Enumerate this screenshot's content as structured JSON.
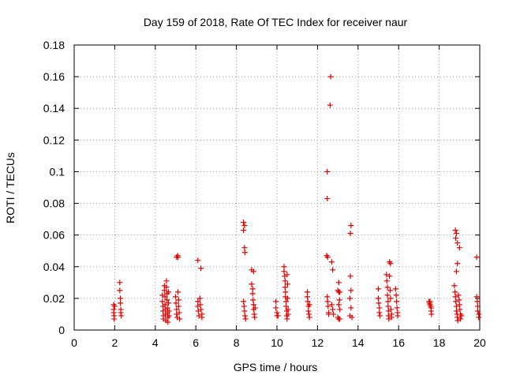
{
  "chart_data": {
    "type": "scatter",
    "title": "Day 159 of 2018, Rate Of TEC Index for receiver naur",
    "xlabel": "GPS time / hours",
    "ylabel": "ROTI / TECUs",
    "xlim": [
      0,
      20
    ],
    "ylim": [
      0,
      0.18
    ],
    "grid": true,
    "marker": "+",
    "color": "#e00000",
    "x_ticks": [
      {
        "value": 0,
        "label": "0"
      },
      {
        "value": 2,
        "label": "2"
      },
      {
        "value": 4,
        "label": "4"
      },
      {
        "value": 6,
        "label": "6"
      },
      {
        "value": 8,
        "label": "8"
      },
      {
        "value": 10,
        "label": "10"
      },
      {
        "value": 12,
        "label": "12"
      },
      {
        "value": 14,
        "label": "14"
      },
      {
        "value": 16,
        "label": "16"
      },
      {
        "value": 18,
        "label": "18"
      },
      {
        "value": 20,
        "label": "20"
      }
    ],
    "y_ticks": [
      {
        "value": 0,
        "label": "0"
      },
      {
        "value": 0.02,
        "label": "0.02"
      },
      {
        "value": 0.04,
        "label": "0.04"
      },
      {
        "value": 0.06,
        "label": "0.06"
      },
      {
        "value": 0.08,
        "label": "0.08"
      },
      {
        "value": 0.1,
        "label": "0.1"
      },
      {
        "value": 0.12,
        "label": "0.12"
      },
      {
        "value": 0.14,
        "label": "0.14"
      },
      {
        "value": 0.16,
        "label": "0.16"
      },
      {
        "value": 0.18,
        "label": "0.18"
      }
    ],
    "points": [
      [
        1.95,
        0.016
      ],
      [
        1.95,
        0.013
      ],
      [
        1.95,
        0.011
      ],
      [
        1.97,
        0.009
      ],
      [
        1.97,
        0.007
      ],
      [
        2.0,
        0.015
      ],
      [
        2.25,
        0.03
      ],
      [
        2.25,
        0.025
      ],
      [
        2.28,
        0.02
      ],
      [
        2.28,
        0.017
      ],
      [
        2.3,
        0.013
      ],
      [
        2.3,
        0.011
      ],
      [
        2.32,
        0.009
      ],
      [
        4.35,
        0.022
      ],
      [
        4.35,
        0.018
      ],
      [
        4.38,
        0.015
      ],
      [
        4.38,
        0.012
      ],
      [
        4.4,
        0.009
      ],
      [
        4.4,
        0.007
      ],
      [
        4.45,
        0.028
      ],
      [
        4.45,
        0.025
      ],
      [
        4.48,
        0.021
      ],
      [
        4.48,
        0.016
      ],
      [
        4.5,
        0.013
      ],
      [
        4.5,
        0.01
      ],
      [
        4.52,
        0.006
      ],
      [
        4.55,
        0.031
      ],
      [
        4.55,
        0.027
      ],
      [
        4.58,
        0.023
      ],
      [
        4.58,
        0.019
      ],
      [
        4.6,
        0.014
      ],
      [
        4.6,
        0.011
      ],
      [
        4.62,
        0.008
      ],
      [
        4.62,
        0.005
      ],
      [
        4.65,
        0.024
      ],
      [
        4.65,
        0.017
      ],
      [
        4.68,
        0.012
      ],
      [
        4.68,
        0.009
      ],
      [
        5.05,
        0.046
      ],
      [
        5.1,
        0.047
      ],
      [
        5.12,
        0.046
      ],
      [
        5.0,
        0.021
      ],
      [
        5.02,
        0.017
      ],
      [
        5.05,
        0.013
      ],
      [
        5.05,
        0.01
      ],
      [
        5.08,
        0.008
      ],
      [
        5.12,
        0.024
      ],
      [
        5.15,
        0.019
      ],
      [
        5.15,
        0.015
      ],
      [
        5.18,
        0.011
      ],
      [
        5.2,
        0.007
      ],
      [
        6.1,
        0.044
      ],
      [
        6.25,
        0.039
      ],
      [
        6.1,
        0.018
      ],
      [
        6.1,
        0.015
      ],
      [
        6.12,
        0.012
      ],
      [
        6.15,
        0.009
      ],
      [
        6.2,
        0.02
      ],
      [
        6.22,
        0.016
      ],
      [
        6.25,
        0.013
      ],
      [
        6.3,
        0.01
      ],
      [
        6.3,
        0.008
      ],
      [
        8.35,
        0.068
      ],
      [
        8.4,
        0.066
      ],
      [
        8.35,
        0.063
      ],
      [
        8.4,
        0.052
      ],
      [
        8.42,
        0.049
      ],
      [
        8.35,
        0.018
      ],
      [
        8.38,
        0.015
      ],
      [
        8.4,
        0.012
      ],
      [
        8.42,
        0.009
      ],
      [
        8.45,
        0.007
      ],
      [
        8.75,
        0.038
      ],
      [
        8.85,
        0.037
      ],
      [
        8.75,
        0.029
      ],
      [
        8.8,
        0.026
      ],
      [
        8.8,
        0.023
      ],
      [
        8.82,
        0.019
      ],
      [
        8.85,
        0.016
      ],
      [
        8.85,
        0.013
      ],
      [
        8.88,
        0.01
      ],
      [
        8.9,
        0.008
      ],
      [
        8.92,
        0.014
      ],
      [
        9.95,
        0.018
      ],
      [
        9.95,
        0.014
      ],
      [
        10.0,
        0.011
      ],
      [
        10.0,
        0.009
      ],
      [
        10.05,
        0.009
      ],
      [
        10.35,
        0.04
      ],
      [
        10.35,
        0.037
      ],
      [
        10.38,
        0.034
      ],
      [
        10.4,
        0.031
      ],
      [
        10.4,
        0.027
      ],
      [
        10.42,
        0.024
      ],
      [
        10.42,
        0.021
      ],
      [
        10.45,
        0.018
      ],
      [
        10.45,
        0.015
      ],
      [
        10.48,
        0.012
      ],
      [
        10.48,
        0.009
      ],
      [
        10.5,
        0.007
      ],
      [
        10.5,
        0.035
      ],
      [
        10.52,
        0.029
      ],
      [
        10.52,
        0.02
      ],
      [
        10.55,
        0.013
      ],
      [
        10.55,
        0.01
      ],
      [
        11.5,
        0.024
      ],
      [
        11.5,
        0.021
      ],
      [
        11.52,
        0.018
      ],
      [
        11.55,
        0.015
      ],
      [
        11.55,
        0.012
      ],
      [
        11.58,
        0.01
      ],
      [
        11.6,
        0.008
      ],
      [
        11.6,
        0.016
      ],
      [
        12.45,
        0.047
      ],
      [
        12.5,
        0.046
      ],
      [
        12.48,
        0.021
      ],
      [
        12.5,
        0.018
      ],
      [
        12.52,
        0.015
      ],
      [
        12.55,
        0.011
      ],
      [
        12.55,
        0.01
      ],
      [
        12.65,
        0.16
      ],
      [
        12.62,
        0.142
      ],
      [
        12.48,
        0.1
      ],
      [
        12.48,
        0.083
      ],
      [
        12.7,
        0.043
      ],
      [
        12.75,
        0.038
      ],
      [
        12.7,
        0.016
      ],
      [
        12.75,
        0.013
      ],
      [
        12.78,
        0.01
      ],
      [
        13.05,
        0.03
      ],
      [
        13.0,
        0.025
      ],
      [
        13.05,
        0.024
      ],
      [
        13.1,
        0.024
      ],
      [
        13.08,
        0.019
      ],
      [
        13.05,
        0.016
      ],
      [
        13.1,
        0.013
      ],
      [
        13.0,
        0.008
      ],
      [
        13.05,
        0.007
      ],
      [
        13.1,
        0.007
      ],
      [
        13.65,
        0.066
      ],
      [
        13.62,
        0.061
      ],
      [
        13.62,
        0.034
      ],
      [
        13.65,
        0.025
      ],
      [
        13.6,
        0.02
      ],
      [
        13.65,
        0.014
      ],
      [
        13.6,
        0.009
      ],
      [
        13.7,
        0.008
      ],
      [
        15.0,
        0.026
      ],
      [
        15.0,
        0.02
      ],
      [
        15.02,
        0.017
      ],
      [
        15.05,
        0.014
      ],
      [
        15.05,
        0.011
      ],
      [
        15.08,
        0.009
      ],
      [
        15.4,
        0.035
      ],
      [
        15.42,
        0.031
      ],
      [
        15.45,
        0.027
      ],
      [
        15.45,
        0.022
      ],
      [
        15.48,
        0.018
      ],
      [
        15.48,
        0.015
      ],
      [
        15.5,
        0.012
      ],
      [
        15.5,
        0.009
      ],
      [
        15.52,
        0.007
      ],
      [
        15.55,
        0.043
      ],
      [
        15.6,
        0.042
      ],
      [
        15.55,
        0.034
      ],
      [
        15.58,
        0.025
      ],
      [
        15.6,
        0.02
      ],
      [
        15.62,
        0.013
      ],
      [
        15.65,
        0.01
      ],
      [
        15.65,
        0.008
      ],
      [
        15.85,
        0.026
      ],
      [
        15.88,
        0.022
      ],
      [
        15.9,
        0.018
      ],
      [
        15.92,
        0.014
      ],
      [
        15.95,
        0.011
      ],
      [
        15.95,
        0.009
      ],
      [
        17.5,
        0.018
      ],
      [
        17.52,
        0.017
      ],
      [
        17.55,
        0.016
      ],
      [
        17.58,
        0.015
      ],
      [
        17.6,
        0.014
      ],
      [
        17.6,
        0.012
      ],
      [
        17.62,
        0.01
      ],
      [
        17.55,
        0.018
      ],
      [
        18.8,
        0.063
      ],
      [
        18.85,
        0.061
      ],
      [
        18.82,
        0.058
      ],
      [
        18.9,
        0.055
      ],
      [
        19.0,
        0.052
      ],
      [
        18.9,
        0.042
      ],
      [
        18.85,
        0.037
      ],
      [
        18.75,
        0.028
      ],
      [
        18.78,
        0.024
      ],
      [
        18.8,
        0.021
      ],
      [
        18.82,
        0.018
      ],
      [
        18.85,
        0.015
      ],
      [
        18.85,
        0.012
      ],
      [
        18.88,
        0.01
      ],
      [
        18.9,
        0.008
      ],
      [
        18.92,
        0.006
      ],
      [
        18.95,
        0.022
      ],
      [
        18.98,
        0.019
      ],
      [
        19.0,
        0.016
      ],
      [
        19.02,
        0.013
      ],
      [
        19.05,
        0.01
      ],
      [
        19.05,
        0.007
      ],
      [
        19.1,
        0.009
      ],
      [
        19.85,
        0.046
      ],
      [
        19.85,
        0.021
      ],
      [
        19.88,
        0.018
      ],
      [
        19.9,
        0.015
      ],
      [
        19.9,
        0.012
      ],
      [
        19.95,
        0.01
      ],
      [
        19.95,
        0.008
      ]
    ]
  }
}
